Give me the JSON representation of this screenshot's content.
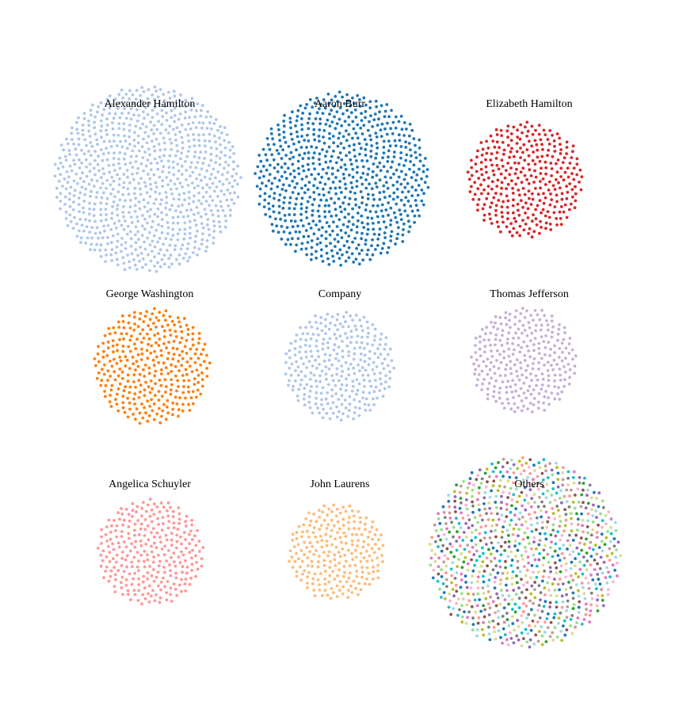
{
  "chart_data": {
    "type": "scatter",
    "grid": false,
    "clusters": [
      {
        "name": "Alexander Hamilton",
        "count": 850,
        "color": "#aec7e8"
      },
      {
        "name": "Aaron Burr",
        "count": 740,
        "color": "#1f77b4"
      },
      {
        "name": "Elizabeth Hamilton",
        "count": 330,
        "color": "#d62728"
      },
      {
        "name": "George Washington",
        "count": 330,
        "color": "#ff7f0e"
      },
      {
        "name": "Company",
        "count": 300,
        "color": "#aec7e8"
      },
      {
        "name": "Thomas Jefferson",
        "count": 280,
        "color": "#c5b0d5"
      },
      {
        "name": "Angelica Schuyler",
        "count": 280,
        "color": "#ff9896"
      },
      {
        "name": "John Laurens",
        "count": 230,
        "color": "#ffbb78"
      },
      {
        "name": "Others",
        "count": 900,
        "palette": [
          "#1f77b4",
          "#2ca02c",
          "#98df8a",
          "#8c564b",
          "#17becf",
          "#9edae5",
          "#c49c94",
          "#9467bd",
          "#e377c2",
          "#bcbd22",
          "#7f7f7f",
          "#dbdb8d",
          "#f7b6d2",
          "#ff9896"
        ]
      }
    ]
  }
}
